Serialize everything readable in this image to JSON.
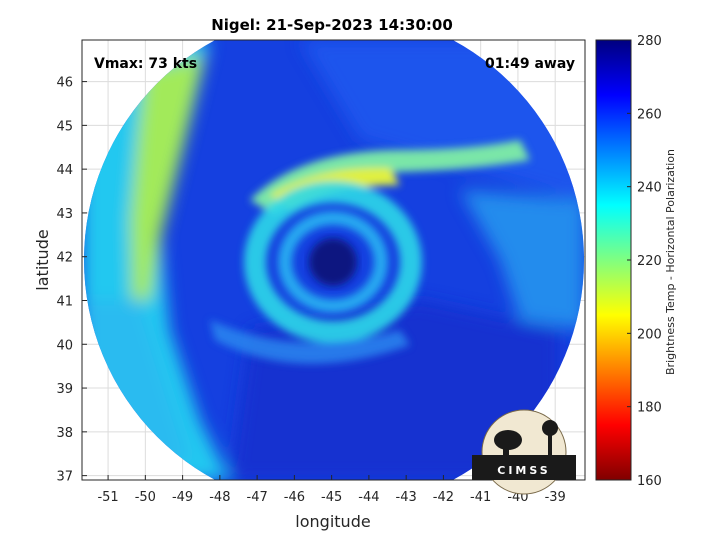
{
  "chart_data": {
    "type": "heatmap",
    "title": "Nigel: 21-Sep-2023 14:30:00",
    "xlabel": "longitude",
    "ylabel": "latitude",
    "xlim": [
      -51.7,
      -38.2
    ],
    "ylim": [
      36.9,
      46.95
    ],
    "xticks": [
      -51,
      -50,
      -49,
      -48,
      -47,
      -46,
      -45,
      -44,
      -43,
      -42,
      -41,
      -40,
      -39
    ],
    "yticks": [
      37,
      38,
      39,
      40,
      41,
      42,
      43,
      44,
      45,
      46
    ],
    "grid": true,
    "annotations": {
      "vmax": "Vmax: 73 kts",
      "time_away": "01:49 away"
    },
    "storm_center": {
      "lon": -45.0,
      "lat": 42.0
    },
    "colorbar": {
      "label": "Brightness Temp - Horizontal Polarization",
      "min": 160,
      "max": 280,
      "ticks": [
        160,
        180,
        200,
        220,
        240,
        260,
        280
      ],
      "colormap": "jet"
    },
    "logo": "CIMSS"
  }
}
